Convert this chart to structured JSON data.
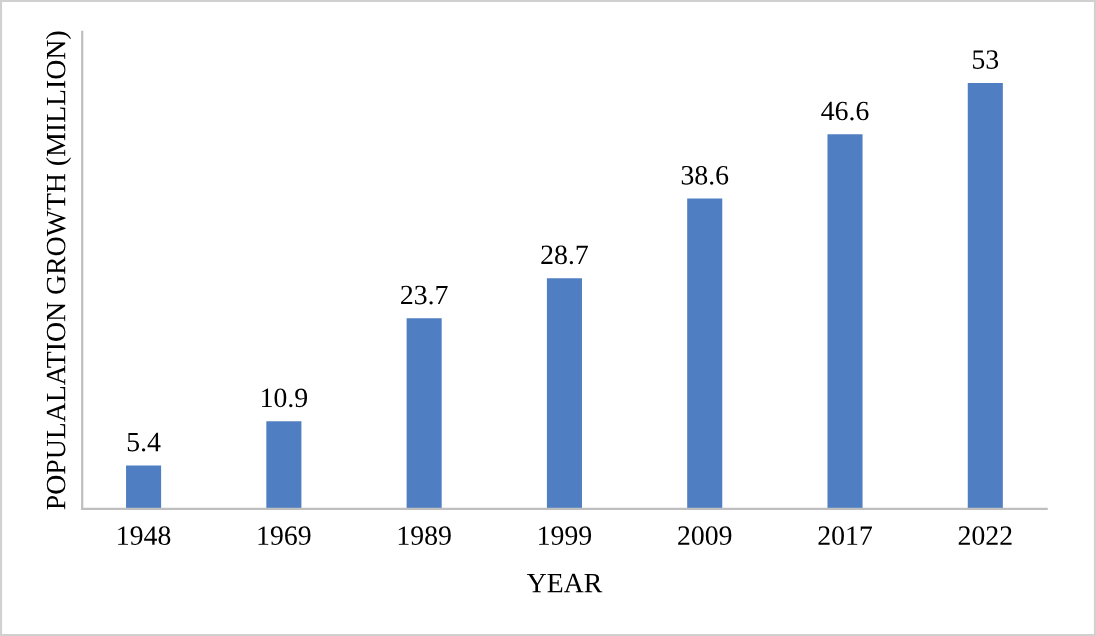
{
  "chart_data": {
    "type": "bar",
    "xlabel": "YEAR",
    "ylabel": "POPULALATION GROWTH (MILLION)",
    "categories": [
      "1948",
      "1969",
      "1989",
      "1999",
      "2009",
      "2017",
      "2022"
    ],
    "values": [
      5.4,
      10.9,
      23.7,
      28.7,
      38.6,
      46.6,
      53
    ],
    "color": "#4f7fc2",
    "data_labels": true,
    "grid": false,
    "legend": false
  }
}
